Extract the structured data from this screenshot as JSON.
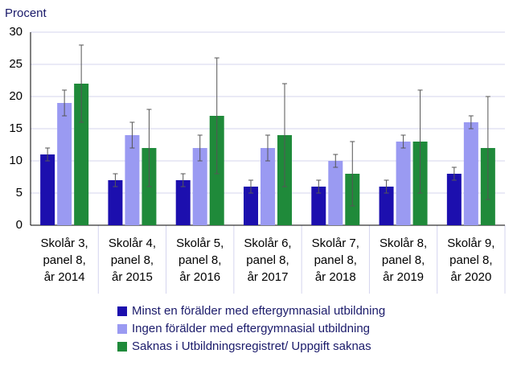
{
  "chart_data": {
    "type": "bar",
    "y_label": "Procent",
    "categories": [
      [
        "Skolår 3,",
        "panel 8,",
        "år 2014"
      ],
      [
        "Skolår 4,",
        "panel 8,",
        "år 2015"
      ],
      [
        "Skolår 5,",
        "panel 8,",
        "år 2016"
      ],
      [
        "Skolår 6,",
        "panel 8,",
        "år 2017"
      ],
      [
        "Skolår 7,",
        "panel 8,",
        "år 2018"
      ],
      [
        "Skolår 8,",
        "panel 8,",
        "år 2019"
      ],
      [
        "Skolår 9,",
        "panel 8,",
        "år 2020"
      ]
    ],
    "series": [
      {
        "name": "Minst en förälder med eftergymnasial utbildning",
        "color": "#1c0fae",
        "values": [
          11,
          7,
          7,
          6,
          6,
          6,
          8
        ],
        "errors": [
          1,
          1,
          1,
          1,
          1,
          1,
          1
        ]
      },
      {
        "name": "Ingen förälder med eftergymnasial utbildning",
        "color": "#9a9af2",
        "values": [
          19,
          14,
          12,
          12,
          10,
          13,
          16
        ],
        "errors": [
          2,
          2,
          2,
          2,
          1,
          1,
          1
        ]
      },
      {
        "name": "Saknas i Utbildningsregistret/ Uppgift saknas",
        "color": "#1f8a3a",
        "values": [
          22,
          12,
          17,
          14,
          8,
          13,
          12
        ],
        "errors": [
          6,
          6,
          9,
          8,
          5,
          8,
          8
        ]
      }
    ],
    "ylim": [
      0,
      30
    ],
    "yticks": [
      0,
      5,
      10,
      15,
      20,
      25,
      30
    ],
    "grid": true
  }
}
